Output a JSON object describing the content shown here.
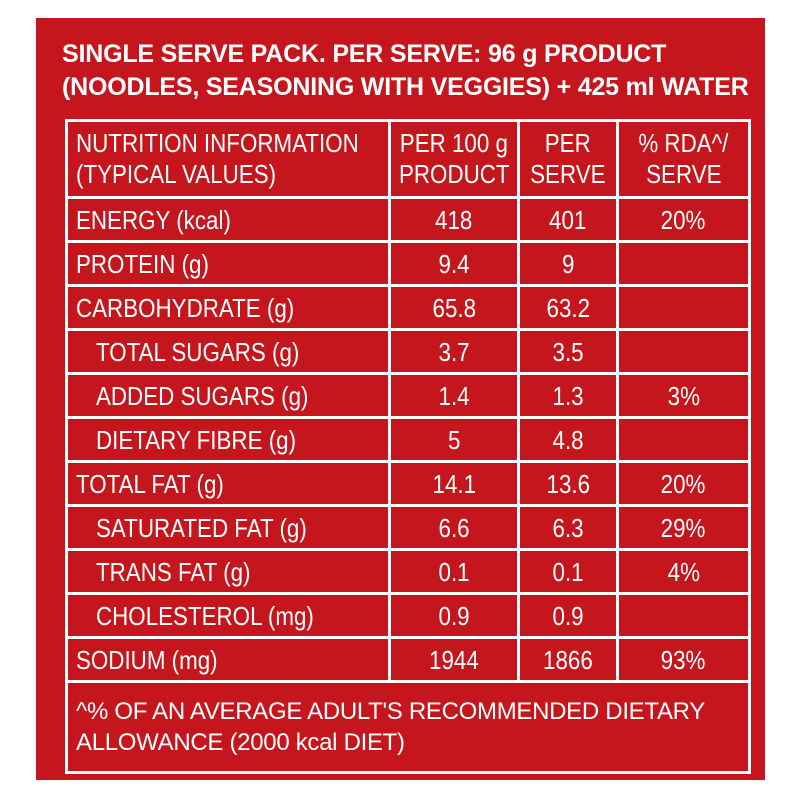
{
  "panel_color": "#c4161c",
  "header": {
    "line1": "SINGLE SERVE PACK. PER SERVE: 96 g PRODUCT",
    "line2": "(NOODLES, SEASONING WITH VEGGIES) + 425 ml WATER"
  },
  "table": {
    "columns": [
      {
        "line1": "NUTRITION INFORMATION",
        "line2": "(TYPICAL VALUES)"
      },
      {
        "line1": "PER 100 g",
        "line2": "PRODUCT"
      },
      {
        "line1": "PER",
        "line2": "SERVE"
      },
      {
        "line1": "% RDA^/",
        "line2": "SERVE"
      }
    ],
    "rows": [
      {
        "name": "ENERGY (kcal)",
        "per100": "418",
        "perServe": "401",
        "rda": "20%",
        "indent": false
      },
      {
        "name": "PROTEIN (g)",
        "per100": "9.4",
        "perServe": "9",
        "rda": "",
        "indent": false
      },
      {
        "name": "CARBOHYDRATE (g)",
        "per100": "65.8",
        "perServe": "63.2",
        "rda": "",
        "indent": false
      },
      {
        "name": "TOTAL SUGARS (g)",
        "per100": "3.7",
        "perServe": "3.5",
        "rda": "",
        "indent": true
      },
      {
        "name": "ADDED SUGARS (g)",
        "per100": "1.4",
        "perServe": "1.3",
        "rda": "3%",
        "indent": true
      },
      {
        "name": "DIETARY FIBRE (g)",
        "per100": "5",
        "perServe": "4.8",
        "rda": "",
        "indent": true
      },
      {
        "name": "TOTAL FAT (g)",
        "per100": "14.1",
        "perServe": "13.6",
        "rda": "20%",
        "indent": false
      },
      {
        "name": "SATURATED FAT (g)",
        "per100": "6.6",
        "perServe": "6.3",
        "rda": "29%",
        "indent": true
      },
      {
        "name": "TRANS FAT (g)",
        "per100": "0.1",
        "perServe": "0.1",
        "rda": "4%",
        "indent": true
      },
      {
        "name": "CHOLESTEROL (mg)",
        "per100": "0.9",
        "perServe": "0.9",
        "rda": "",
        "indent": true
      },
      {
        "name": "SODIUM (mg)",
        "per100": "1944",
        "perServe": "1866",
        "rda": "93%",
        "indent": false
      }
    ],
    "footnote": {
      "line1": "^% OF AN AVERAGE ADULT'S RECOMMENDED DIETARY",
      "line2": "ALLOWANCE (2000 kcal DIET)"
    }
  }
}
